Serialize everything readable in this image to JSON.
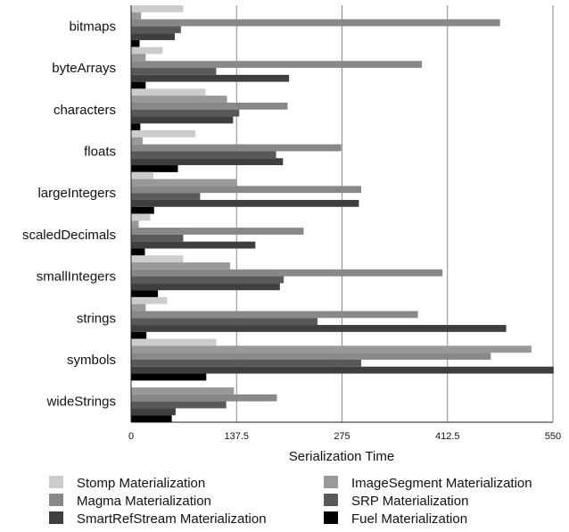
{
  "chart_data": {
    "type": "bar",
    "orientation": "horizontal",
    "xlabel": "Serialization Time",
    "xlim": [
      0,
      550
    ],
    "xticks": [
      "0",
      "137.5",
      "275",
      "412.5",
      "550"
    ],
    "xtick_values": [
      0,
      137.5,
      275,
      412.5,
      550
    ],
    "grid": "vertical",
    "legend_position": "bottom",
    "categories": [
      "bitmaps",
      "byteArrays",
      "characters",
      "floats",
      "largeIntegers",
      "scaledDecimals",
      "smallIntegers",
      "strings",
      "symbols",
      "wideStrings"
    ],
    "series": [
      {
        "name": "Stomp Materialization",
        "color": "#cccccc",
        "values": [
          68,
          41,
          97,
          84,
          29,
          25,
          68,
          47,
          111,
          0
        ]
      },
      {
        "name": "ImageSegment Materialization",
        "color": "#999999",
        "values": [
          13,
          19,
          125,
          15,
          138,
          10,
          129,
          19,
          522,
          134
        ]
      },
      {
        "name": "Magma Materialization",
        "color": "#888888",
        "values": [
          481,
          379,
          204,
          274,
          300,
          225,
          406,
          374,
          469,
          190
        ]
      },
      {
        "name": "SRP Materialization",
        "color": "#595959",
        "values": [
          65,
          111,
          141,
          189,
          90,
          68,
          199,
          243,
          300,
          124
        ]
      },
      {
        "name": "SmartRefStream Materialization",
        "color": "#3f3f3f",
        "values": [
          57,
          206,
          133,
          198,
          297,
          162,
          194,
          489,
          551,
          58
        ]
      },
      {
        "name": "Fuel Materialization",
        "color": "#000000",
        "values": [
          11,
          19,
          12,
          61,
          30,
          18,
          35,
          20,
          98,
          53
        ]
      }
    ]
  }
}
